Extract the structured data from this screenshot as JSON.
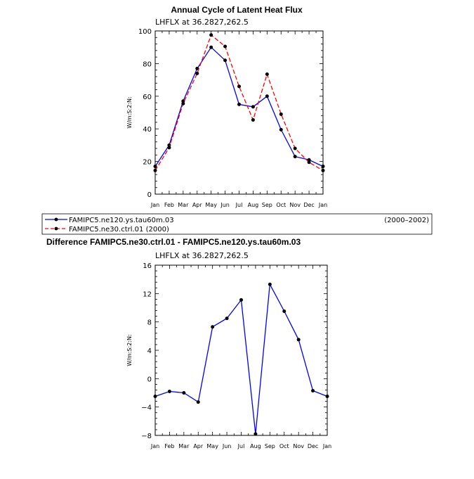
{
  "chart_data": [
    {
      "type": "line",
      "title": "Annual Cycle of Latent Heat Flux",
      "subtitle": "LHFLX at 36.2827,262.5",
      "xlabel": "",
      "ylabel": "W/m:S:2:N:",
      "categories": [
        "Jan",
        "Feb",
        "Mar",
        "Apr",
        "May",
        "Jun",
        "Jul",
        "Aug",
        "Sep",
        "Oct",
        "Nov",
        "Dec",
        "Jan"
      ],
      "ylim": [
        0,
        100
      ],
      "yticks": [
        0,
        20,
        40,
        60,
        80,
        100
      ],
      "series": [
        {
          "name": "FAMIPC5.ne120.ys.tau60m.03",
          "years": "(2000–2002)",
          "color": "#0000ff",
          "dashed": false,
          "values": [
            17,
            30,
            57,
            77,
            90,
            82,
            55,
            53.5,
            60,
            39.5,
            23,
            21,
            17
          ]
        },
        {
          "name": "FAMIPC5.ne30.ctrl.01 (2000)",
          "years": "",
          "color": "#ff0000",
          "dashed": true,
          "values": [
            14.5,
            28.5,
            55.5,
            74,
            97.5,
            90.5,
            66,
            45.5,
            73.5,
            49,
            28,
            19.5,
            14.5
          ]
        }
      ],
      "legend": "bottom"
    },
    {
      "type": "line",
      "title": "Difference FAMIPC5.ne30.ctrl.01 - FAMIPC5.ne120.ys.tau60m.03",
      "subtitle": "LHFLX at 36.2827,262.5",
      "xlabel": "",
      "ylabel": "W/m:S:2:N:",
      "categories": [
        "Jan",
        "Feb",
        "Mar",
        "Apr",
        "May",
        "Jun",
        "Jul",
        "Aug",
        "Sep",
        "Oct",
        "Nov",
        "Dec",
        "Jan"
      ],
      "ylim": [
        -8,
        16
      ],
      "yticks": [
        -8,
        -4,
        0,
        4,
        8,
        12,
        16
      ],
      "series": [
        {
          "name": "Difference",
          "color": "#0000ff",
          "dashed": false,
          "values": [
            -2.5,
            -1.8,
            -2.0,
            -3.3,
            7.3,
            8.5,
            11.1,
            -7.8,
            13.3,
            9.5,
            5.5,
            -1.7,
            -2.5
          ]
        }
      ]
    }
  ]
}
